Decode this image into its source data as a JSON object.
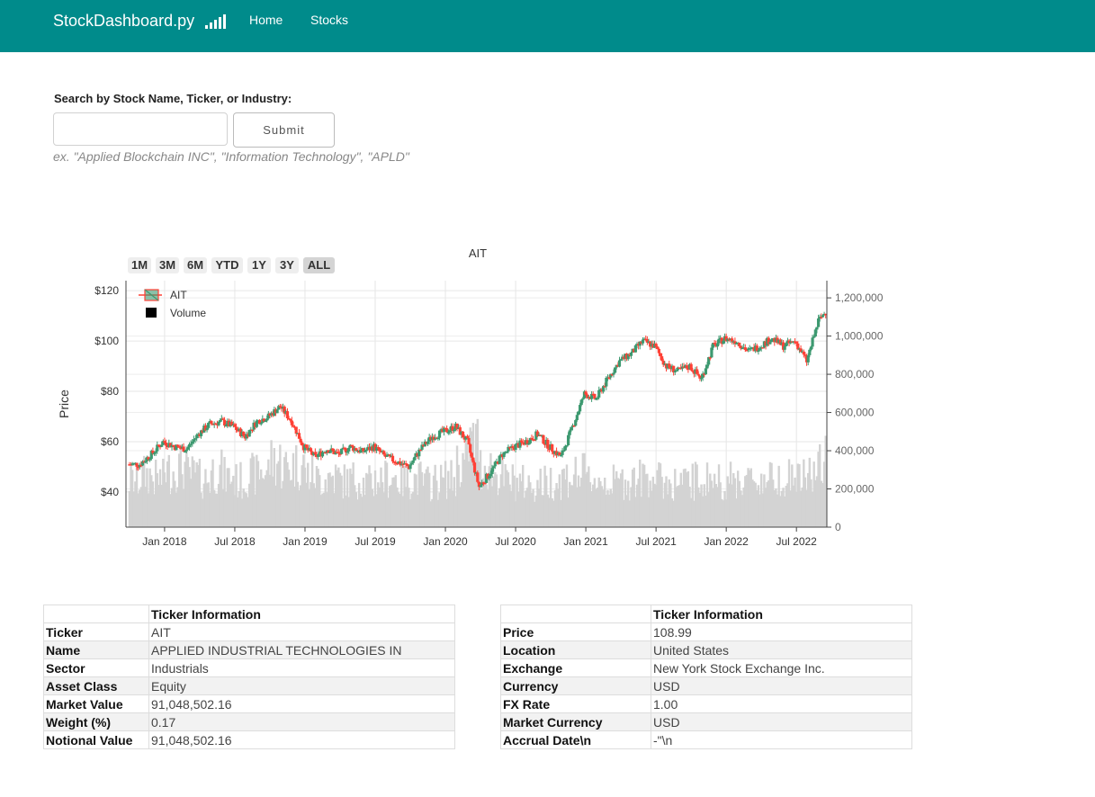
{
  "nav": {
    "brand": "StockDashboard.py",
    "links": [
      "Home",
      "Stocks"
    ]
  },
  "search": {
    "label": "Search by Stock Name, Ticker, or Industry:",
    "value": "",
    "placeholder": "",
    "submit_label": "Submit",
    "hint": "ex. \"Applied Blockchain INC\", \"Information Technology\", \"APLD\""
  },
  "range_buttons": [
    "1M",
    "3M",
    "6M",
    "YTD",
    "1Y",
    "3Y",
    "ALL"
  ],
  "range_selected": "ALL",
  "chart_data": {
    "type": "candlestick",
    "title": "AIT",
    "ylabel": "Price",
    "y_ticks": [
      "$40",
      "$60",
      "$80",
      "$100",
      "$120"
    ],
    "y2_ticks": [
      "0",
      "200,000",
      "400,000",
      "600,000",
      "800,000",
      "1,000,000",
      "1,200,000"
    ],
    "x_ticks": [
      "Jan 2018",
      "Jul 2018",
      "Jan 2019",
      "Jul 2019",
      "Jan 2020",
      "Jul 2020",
      "Jan 2021",
      "Jul 2021",
      "Jan 2022",
      "Jul 2022"
    ],
    "ylim": [
      26,
      124
    ],
    "y2lim": [
      0,
      1290000
    ],
    "legend": [
      "AIT",
      "Volume"
    ],
    "legend_position": "top-left",
    "increasing_color": "#3d9970",
    "decreasing_color": "#ff4136",
    "volume_color": "#d3d3d3",
    "x_dates": [
      "2017-10",
      "2017-11",
      "2017-12",
      "2018-01",
      "2018-02",
      "2018-03",
      "2018-04",
      "2018-05",
      "2018-06",
      "2018-07",
      "2018-08",
      "2018-09",
      "2018-10",
      "2018-11",
      "2018-12",
      "2019-01",
      "2019-02",
      "2019-03",
      "2019-04",
      "2019-05",
      "2019-06",
      "2019-07",
      "2019-08",
      "2019-09",
      "2019-10",
      "2019-11",
      "2019-12",
      "2020-01",
      "2020-02",
      "2020-03",
      "2020-04",
      "2020-05",
      "2020-06",
      "2020-07",
      "2020-08",
      "2020-09",
      "2020-10",
      "2020-11",
      "2020-12",
      "2021-01",
      "2021-02",
      "2021-03",
      "2021-04",
      "2021-05",
      "2021-06",
      "2021-07",
      "2021-08",
      "2021-09",
      "2021-10",
      "2021-11",
      "2021-12",
      "2022-01",
      "2022-02",
      "2022-03",
      "2022-04",
      "2022-05",
      "2022-06",
      "2022-07",
      "2022-08",
      "2022-09"
    ],
    "close": [
      51,
      55,
      60,
      58,
      57,
      63,
      67,
      68,
      66,
      62,
      68,
      70,
      74,
      68,
      58,
      54,
      57,
      55,
      58,
      56,
      58,
      54,
      52,
      50,
      57,
      62,
      64,
      66,
      60,
      42,
      48,
      55,
      58,
      60,
      63,
      58,
      54,
      66,
      79,
      77,
      85,
      92,
      95,
      100,
      98,
      90,
      88,
      90,
      85,
      98,
      101,
      100,
      96,
      98,
      101,
      98,
      100,
      92,
      108,
      114
    ],
    "volume": [
      230000,
      260000,
      240000,
      280000,
      300000,
      260000,
      240000,
      280000,
      250000,
      230000,
      260000,
      280000,
      330000,
      300000,
      310000,
      260000,
      240000,
      250000,
      230000,
      240000,
      220000,
      240000,
      250000,
      230000,
      240000,
      220000,
      230000,
      240000,
      320000,
      420000,
      300000,
      260000,
      230000,
      220000,
      210000,
      220000,
      230000,
      250000,
      260000,
      240000,
      230000,
      220000,
      230000,
      240000,
      260000,
      230000,
      220000,
      220000,
      230000,
      240000,
      230000,
      230000,
      240000,
      230000,
      240000,
      260000,
      250000,
      240000,
      270000,
      320000
    ]
  },
  "table_left": {
    "header": "Ticker Information",
    "rows": [
      {
        "key": "Ticker",
        "value": "AIT"
      },
      {
        "key": "Name",
        "value": "APPLIED INDUSTRIAL TECHNOLOGIES IN"
      },
      {
        "key": "Sector",
        "value": "Industrials"
      },
      {
        "key": "Asset Class",
        "value": "Equity"
      },
      {
        "key": "Market Value",
        "value": "91,048,502.16"
      },
      {
        "key": "Weight (%)",
        "value": "0.17"
      },
      {
        "key": "Notional Value",
        "value": "91,048,502.16"
      }
    ]
  },
  "table_right": {
    "header": "Ticker Information",
    "rows": [
      {
        "key": "Price",
        "value": "108.99"
      },
      {
        "key": "Location",
        "value": "United States"
      },
      {
        "key": "Exchange",
        "value": "New York Stock Exchange Inc."
      },
      {
        "key": "Currency",
        "value": "USD"
      },
      {
        "key": "FX Rate",
        "value": "1.00"
      },
      {
        "key": "Market Currency",
        "value": "USD"
      },
      {
        "key": "Accrual Date\\n",
        "value": "-\"\\n"
      }
    ]
  },
  "icons": {
    "brand_icon": "signal-bars-icon"
  }
}
